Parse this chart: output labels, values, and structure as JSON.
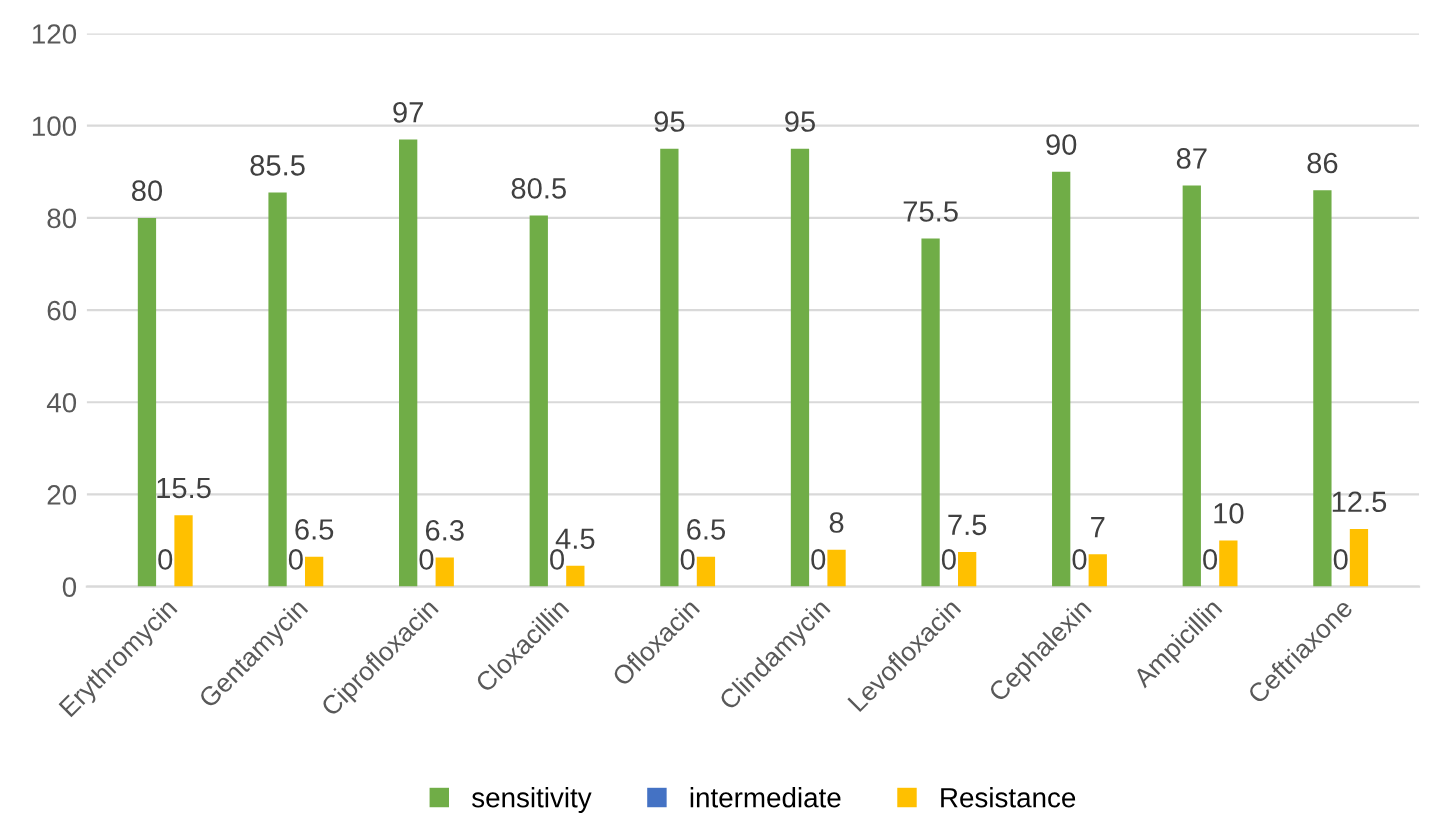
{
  "chart_data": {
    "type": "bar",
    "categories": [
      "Erythromycin",
      "Gentamycin",
      "Ciprofloxacin",
      "Cloxacillin",
      "Ofloxacin",
      "Clindamycin",
      "Levofloxacin",
      "Cephalexin",
      "Ampicillin",
      "Ceftriaxone"
    ],
    "series": [
      {
        "name": "sensitivity",
        "color": "#70ad47",
        "values": [
          80,
          85.5,
          97,
          80.5,
          95,
          95,
          75.5,
          90,
          87,
          86
        ]
      },
      {
        "name": "intermediate",
        "color": "#4472c4",
        "values": [
          0,
          0,
          0,
          0,
          0,
          0,
          0,
          0,
          0,
          0
        ]
      },
      {
        "name": "Resistance",
        "color": "#ffc000",
        "values": [
          15.5,
          6.5,
          6.3,
          4.5,
          6.5,
          8,
          7.5,
          7,
          10,
          12.5
        ]
      }
    ],
    "ylim": [
      0,
      120
    ],
    "yticks": [
      0,
      20,
      40,
      60,
      80,
      100,
      120
    ],
    "grid": "y",
    "legend": "bottom",
    "data_labels": true
  }
}
